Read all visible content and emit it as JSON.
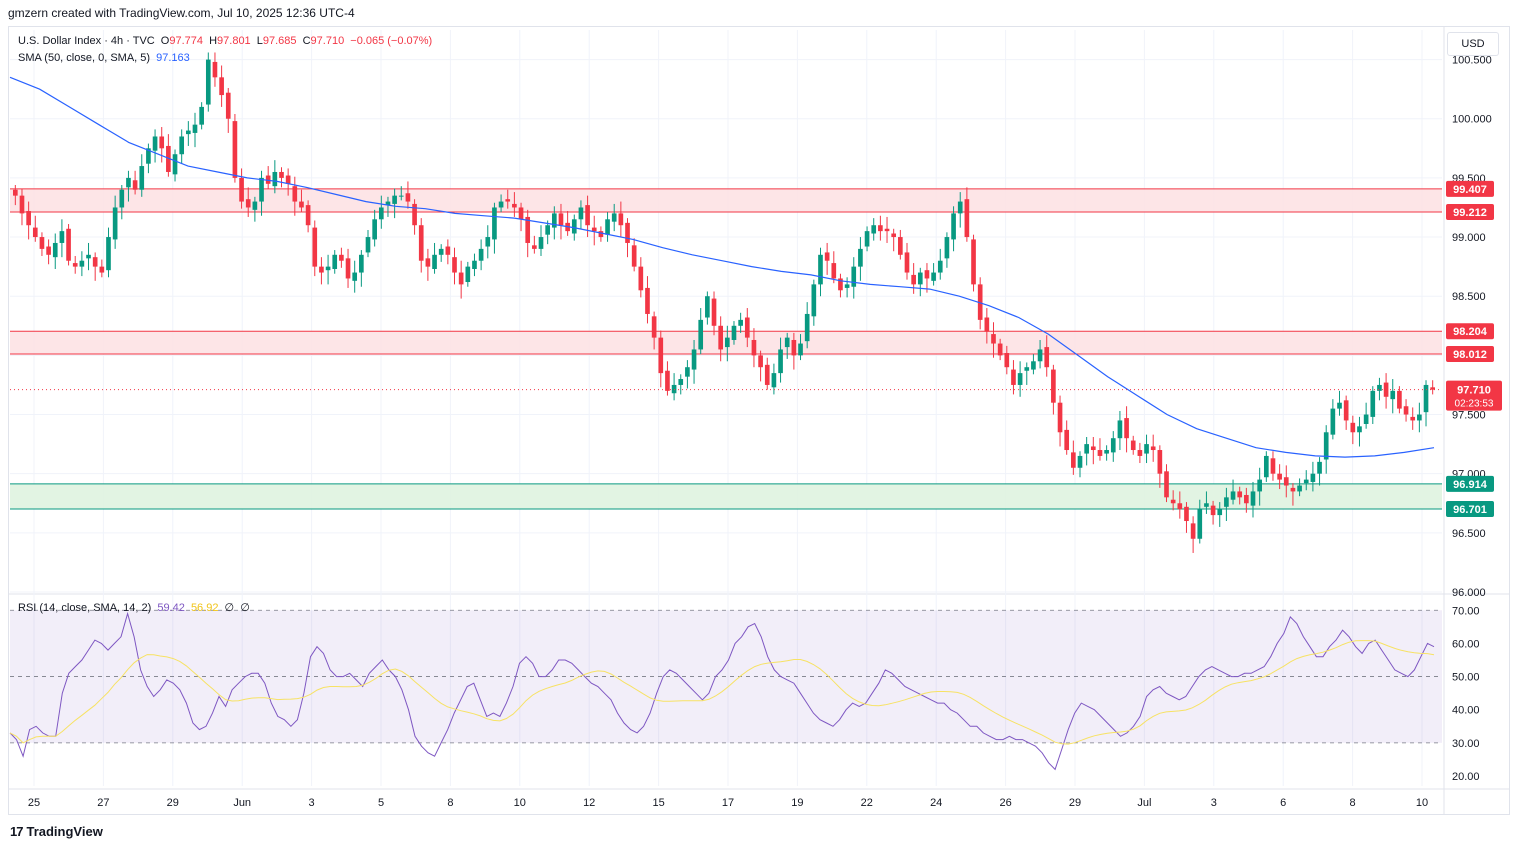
{
  "header": {
    "text": "gmzern created with TradingView.com, Jul 10, 2025 12:36 UTC-4"
  },
  "legend": {
    "symbol": "U.S. Dollar Index · 4h · TVC",
    "open_label": "O",
    "open": "97.774",
    "high_label": "H",
    "high": "97.801",
    "low_label": "L",
    "low": "97.685",
    "close_label": "C",
    "close": "97.710",
    "change": "−0.065 (−0.07%)",
    "sma_label": "SMA (50, close, 0, SMA, 5)",
    "sma_value": "97.163",
    "rsi_label": "RSI (14, close, SMA, 14, 2)",
    "rsi_value": "59.42",
    "rsi_sma_value": "56.92",
    "rsi_extra1": "∅",
    "rsi_extra2": "∅"
  },
  "currency_button": "USD",
  "footer": {
    "brand": "TradingView",
    "logo": "17"
  },
  "colors": {
    "up": "#089981",
    "down": "#f23645",
    "sma": "#2962ff",
    "rsi": "#7e57c2",
    "rsi_sma": "#f7e264",
    "resistance_fill": "#fde2e4",
    "support_fill": "#dff3e0"
  },
  "chart_data": {
    "type": "candlestick",
    "price_axis": {
      "ylim": [
        96.0,
        100.75
      ],
      "ticks": [
        "96.000",
        "96.500",
        "97.000",
        "97.500",
        "98.000",
        "98.500",
        "99.000",
        "99.500",
        "100.000",
        "100.500"
      ]
    },
    "rsi_axis": {
      "ylim": [
        17,
        74
      ],
      "ticks": [
        "20.00",
        "30.00",
        "40.00",
        "50.00",
        "60.00",
        "70.00"
      ],
      "bands": [
        30,
        50,
        70
      ]
    },
    "x_ticks": [
      "25",
      "27",
      "29",
      "Jun",
      "3",
      "5",
      "8",
      "10",
      "12",
      "15",
      "17",
      "19",
      "22",
      "24",
      "26",
      "29",
      "Jul",
      "3",
      "6",
      "8",
      "10"
    ],
    "zones": [
      {
        "name": "resistance-upper",
        "top": 99.407,
        "bottom": 99.212,
        "top_label": "99.407",
        "bottom_label": "99.212",
        "color": "#f23645"
      },
      {
        "name": "resistance-lower",
        "top": 98.204,
        "bottom": 98.012,
        "top_label": "98.204",
        "bottom_label": "98.012",
        "color": "#f23645"
      },
      {
        "name": "support",
        "top": 96.914,
        "bottom": 96.701,
        "top_label": "96.914",
        "bottom_label": "96.701",
        "color": "#089981"
      }
    ],
    "last_price": {
      "value": 97.71,
      "label": "97.710",
      "countdown": "02:23:53"
    },
    "closes": [
      99.35,
      99.2,
      99.1,
      99.0,
      98.9,
      98.85,
      98.95,
      99.05,
      98.8,
      98.75,
      98.8,
      98.85,
      98.75,
      98.7,
      99.0,
      99.25,
      99.4,
      99.5,
      99.4,
      99.6,
      99.75,
      99.85,
      99.75,
      99.55,
      99.7,
      99.85,
      99.9,
      99.95,
      100.1,
      100.5,
      100.35,
      100.2,
      100.0,
      99.5,
      99.3,
      99.25,
      99.3,
      99.5,
      99.45,
      99.55,
      99.5,
      99.45,
      99.3,
      99.25,
      99.1,
      98.75,
      98.7,
      98.75,
      98.85,
      98.8,
      98.65,
      98.7,
      98.85,
      99.0,
      99.15,
      99.25,
      99.3,
      99.35,
      99.35,
      99.3,
      99.1,
      98.8,
      98.75,
      98.85,
      98.9,
      98.85,
      98.7,
      98.6,
      98.75,
      98.8,
      98.9,
      99.0,
      99.25,
      99.3,
      99.3,
      99.25,
      99.15,
      98.95,
      98.9,
      99.0,
      99.1,
      99.2,
      99.1,
      99.05,
      99.15,
      99.25,
      99.1,
      99.05,
      99.0,
      99.15,
      99.2,
      99.1,
      98.95,
      98.75,
      98.55,
      98.35,
      98.15,
      97.85,
      97.7,
      97.75,
      97.8,
      97.9,
      98.05,
      98.3,
      98.5,
      98.25,
      98.05,
      98.15,
      98.25,
      98.3,
      98.15,
      98.0,
      97.9,
      97.75,
      97.85,
      98.05,
      98.15,
      98.0,
      98.1,
      98.35,
      98.6,
      98.85,
      98.8,
      98.65,
      98.55,
      98.6,
      98.75,
      98.9,
      99.05,
      99.1,
      99.05,
      99.05,
      99.0,
      98.85,
      98.7,
      98.6,
      98.7,
      98.65,
      98.7,
      98.8,
      99.0,
      99.2,
      99.3,
      99.0,
      98.6,
      98.3,
      98.2,
      98.1,
      98.0,
      97.9,
      97.75,
      97.85,
      97.9,
      97.95,
      98.05,
      97.9,
      97.6,
      97.35,
      97.2,
      97.05,
      97.15,
      97.25,
      97.2,
      97.15,
      97.2,
      97.3,
      97.45,
      97.3,
      97.2,
      97.15,
      97.25,
      97.2,
      97.0,
      96.8,
      96.75,
      96.7,
      96.6,
      96.45,
      96.7,
      96.75,
      96.65,
      96.7,
      96.8,
      96.85,
      96.8,
      96.75,
      96.85,
      96.95,
      97.15,
      97.0,
      96.95,
      96.9,
      96.85,
      96.9,
      96.95,
      97.0,
      97.1,
      97.35,
      97.55,
      97.6,
      97.45,
      97.35,
      97.4,
      97.5,
      97.7,
      97.75,
      97.65,
      97.7,
      97.55,
      97.5,
      97.45,
      97.5,
      97.75,
      97.71
    ],
    "sma": [
      100.35,
      100.25,
      100.1,
      99.95,
      99.8,
      99.7,
      99.6,
      99.55,
      99.5,
      99.47,
      99.42,
      99.36,
      99.3,
      99.26,
      99.24,
      99.2,
      99.18,
      99.16,
      99.12,
      99.08,
      99.03,
      98.98,
      98.91,
      98.85,
      98.8,
      98.75,
      98.71,
      98.68,
      98.63,
      98.6,
      98.58,
      98.56,
      98.5,
      98.42,
      98.32,
      98.18,
      98.0,
      97.82,
      97.66,
      97.5,
      97.38,
      97.3,
      97.22,
      97.18,
      97.15,
      97.14,
      97.15,
      97.18,
      97.22
    ]
  },
  "rsi_series": [
    33,
    31,
    26,
    34,
    35,
    33,
    32,
    32,
    45,
    51,
    53,
    55,
    58,
    61,
    60,
    58,
    60,
    62,
    69,
    62,
    52,
    47,
    44,
    46,
    49,
    48,
    46,
    42,
    36,
    34,
    35,
    39,
    44,
    41,
    46,
    48,
    50,
    51,
    51,
    48,
    42,
    38,
    37,
    35,
    37,
    45,
    56,
    59,
    57,
    52,
    50,
    50,
    51,
    49,
    47,
    51,
    53,
    55,
    52,
    50,
    46,
    40,
    32,
    29,
    27,
    26,
    30,
    34,
    39,
    43,
    47,
    48,
    43,
    38,
    39,
    38,
    42,
    47,
    54,
    56,
    54,
    50,
    50,
    52,
    55,
    55,
    54,
    52,
    50,
    48,
    47,
    45,
    43,
    39,
    36,
    34,
    33,
    35,
    39,
    45,
    50,
    52,
    51,
    49,
    47,
    45,
    43,
    45,
    50,
    52,
    55,
    60,
    62,
    65,
    66,
    62,
    56,
    52,
    50,
    49,
    48,
    45,
    42,
    39,
    37,
    36,
    35,
    37,
    40,
    42,
    41,
    42,
    45,
    48,
    52,
    51,
    49,
    47,
    46,
    45,
    44,
    43,
    42,
    42,
    40,
    39,
    37,
    35,
    35,
    33,
    32,
    31,
    31,
    32,
    31,
    31,
    30,
    29,
    27,
    24,
    22,
    28,
    34,
    39,
    42,
    41,
    40,
    38,
    36,
    34,
    32,
    33,
    35,
    38,
    44,
    46,
    47,
    45,
    44,
    43,
    44,
    47,
    50,
    52,
    53,
    52,
    51,
    50,
    50,
    51,
    51,
    52,
    53,
    56,
    60,
    63,
    68,
    66,
    62,
    59,
    56,
    56,
    59,
    61,
    64,
    62,
    59,
    57,
    60,
    61,
    58,
    55,
    52,
    51,
    50,
    52,
    56,
    60,
    59
  ]
}
